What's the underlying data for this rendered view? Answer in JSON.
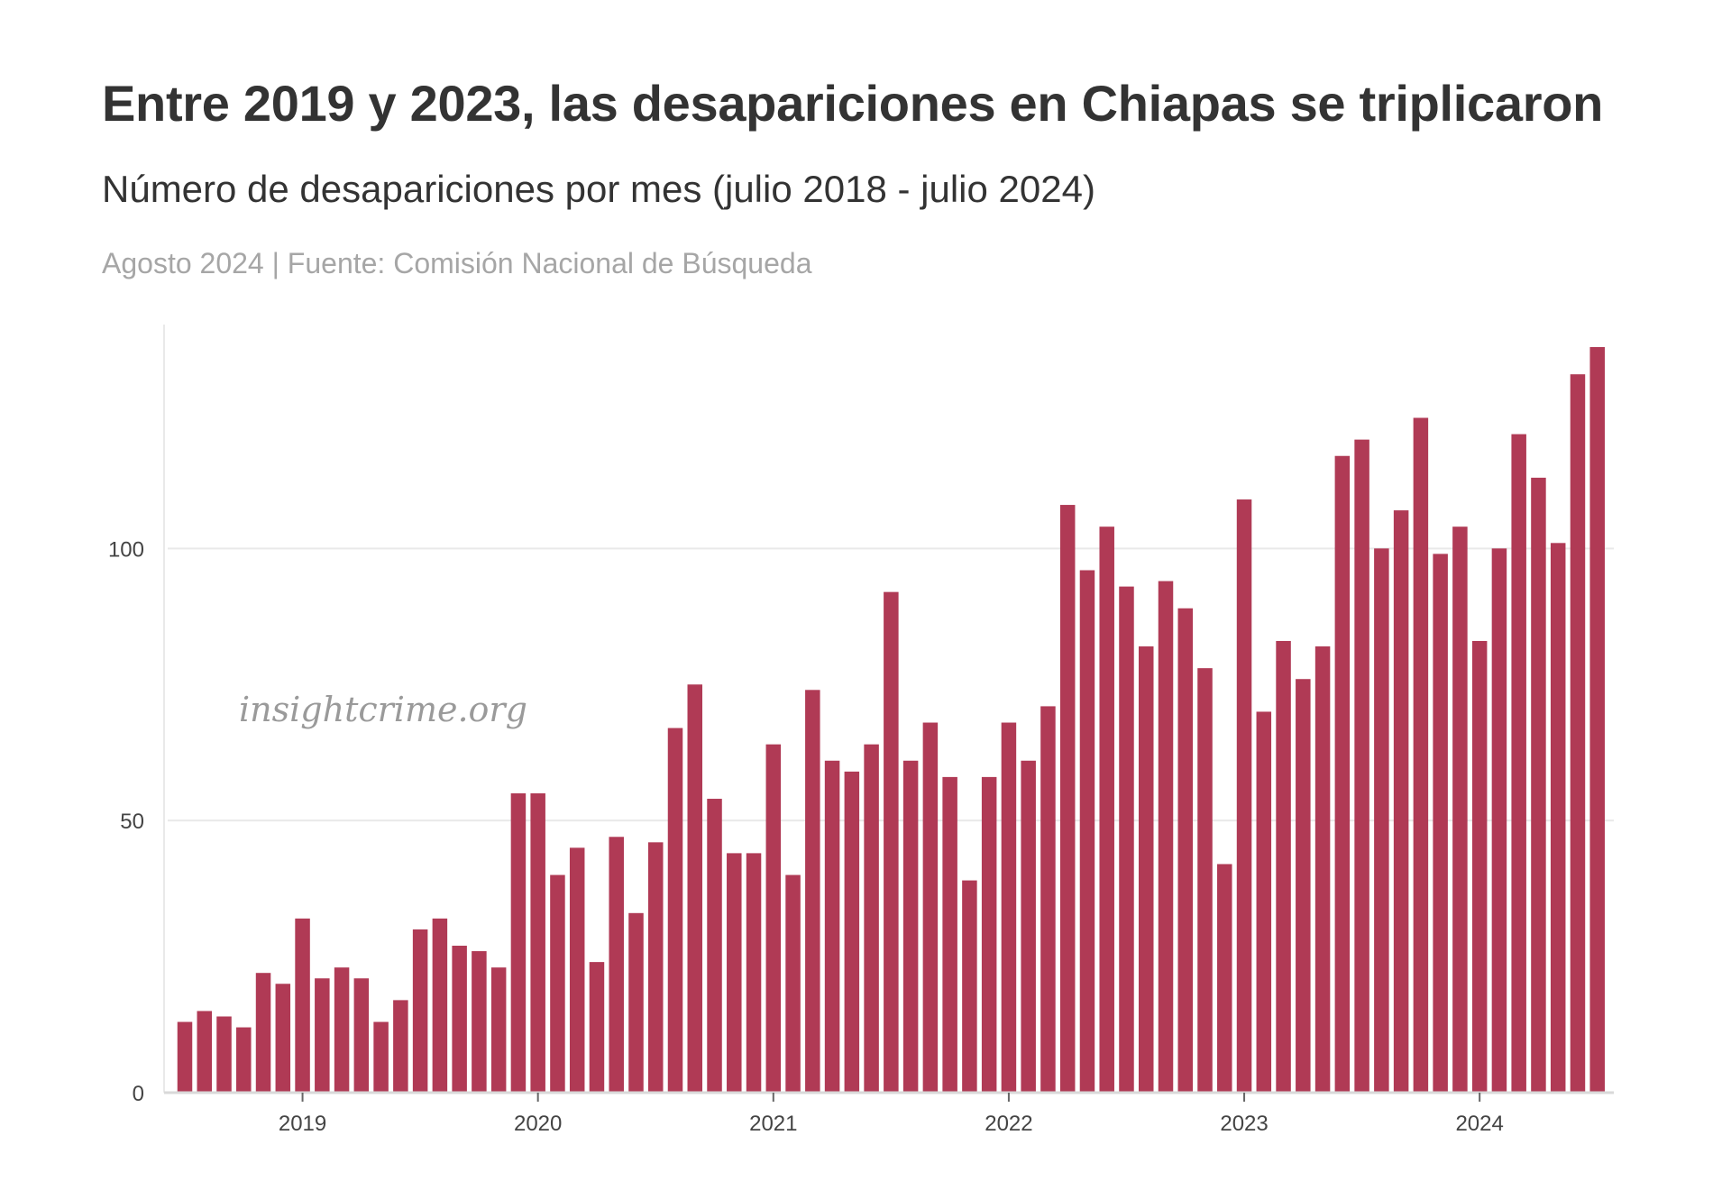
{
  "header": {
    "title": "Entre 2019 y 2023, las desapariciones en Chiapas se triplicaron",
    "subtitle": "Número de desapariciones por mes (julio 2018 - julio 2024)",
    "source": "Agosto 2024 | Fuente: Comisión Nacional de Búsqueda"
  },
  "watermark": "insightcrime.org",
  "colors": {
    "bar": "#b03a55",
    "grid": "#e9e9e9",
    "axis": "#d9d9d9"
  },
  "chart_data": {
    "type": "bar",
    "title": "Entre 2019 y 2023, las desapariciones en Chiapas se triplicaron",
    "subtitle": "Número de desapariciones por mes (julio 2018 - julio 2024)",
    "xlabel": "",
    "ylabel": "",
    "ylim": [
      0,
      137
    ],
    "yticks": [
      0,
      50,
      100
    ],
    "xtick_labels": [
      "2019",
      "2020",
      "2021",
      "2022",
      "2023",
      "2024"
    ],
    "grid": "horizontal",
    "legend": "none",
    "categories": [
      "2018-07",
      "2018-08",
      "2018-09",
      "2018-10",
      "2018-11",
      "2018-12",
      "2019-01",
      "2019-02",
      "2019-03",
      "2019-04",
      "2019-05",
      "2019-06",
      "2019-07",
      "2019-08",
      "2019-09",
      "2019-10",
      "2019-11",
      "2019-12",
      "2020-01",
      "2020-02",
      "2020-03",
      "2020-04",
      "2020-05",
      "2020-06",
      "2020-07",
      "2020-08",
      "2020-09",
      "2020-10",
      "2020-11",
      "2020-12",
      "2021-01",
      "2021-02",
      "2021-03",
      "2021-04",
      "2021-05",
      "2021-06",
      "2021-07",
      "2021-08",
      "2021-09",
      "2021-10",
      "2021-11",
      "2021-12",
      "2022-01",
      "2022-02",
      "2022-03",
      "2022-04",
      "2022-05",
      "2022-06",
      "2022-07",
      "2022-08",
      "2022-09",
      "2022-10",
      "2022-11",
      "2022-12",
      "2023-01",
      "2023-02",
      "2023-03",
      "2023-04",
      "2023-05",
      "2023-06",
      "2023-07",
      "2023-08",
      "2023-09",
      "2023-10",
      "2023-11",
      "2023-12",
      "2024-01",
      "2024-02",
      "2024-03",
      "2024-04",
      "2024-05",
      "2024-06",
      "2024-07"
    ],
    "values": [
      13,
      15,
      14,
      12,
      22,
      20,
      32,
      21,
      23,
      21,
      13,
      17,
      30,
      32,
      27,
      26,
      23,
      55,
      55,
      40,
      45,
      24,
      47,
      33,
      46,
      67,
      75,
      54,
      44,
      44,
      64,
      40,
      74,
      61,
      59,
      64,
      92,
      61,
      68,
      58,
      39,
      58,
      68,
      61,
      71,
      108,
      96,
      104,
      93,
      82,
      94,
      89,
      78,
      42,
      109,
      70,
      83,
      76,
      82,
      117,
      120,
      100,
      107,
      124,
      99,
      104,
      83,
      100,
      121,
      113,
      101,
      132,
      137
    ]
  }
}
